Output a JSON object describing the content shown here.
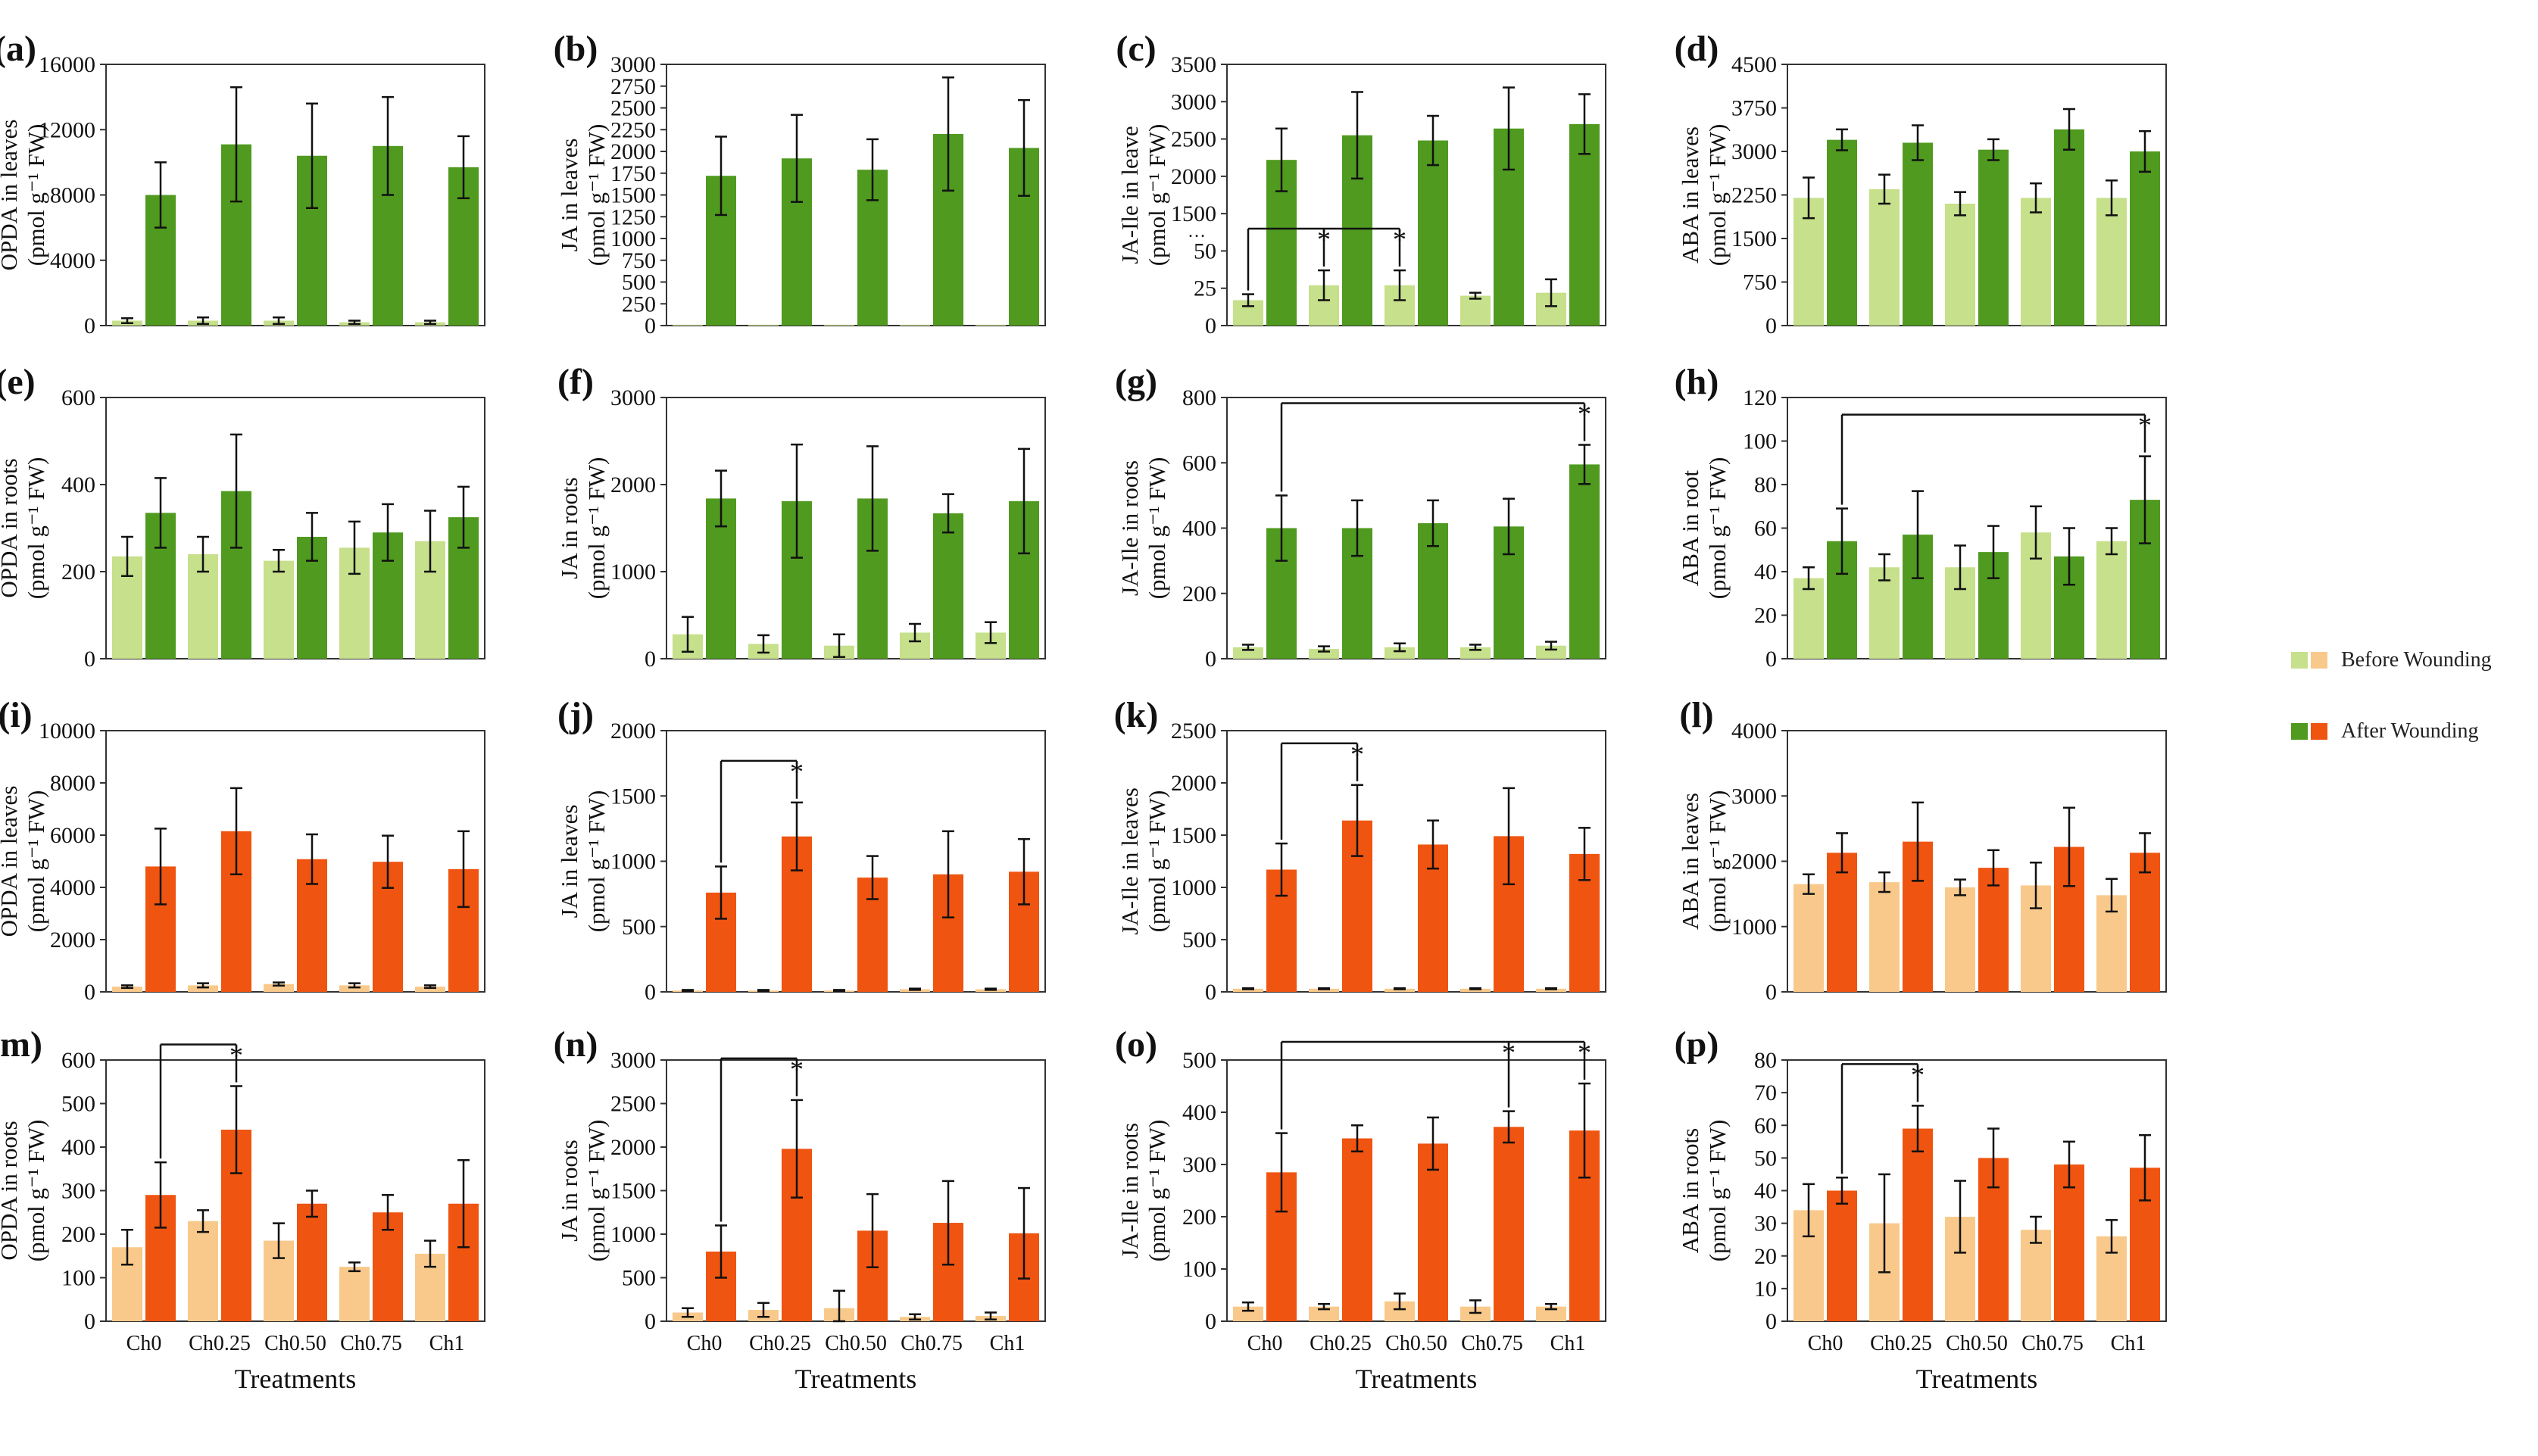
{
  "figure": {
    "title": ""
  },
  "legend": {
    "before_label": "Before Wounding",
    "after_label": "After Wounding",
    "colors": {
      "green_before": "#c6e08b",
      "green_after": "#4f9a1f",
      "orange_before": "#f9c98b",
      "orange_after": "#ef5410"
    }
  },
  "chart_data": [
    {
      "id": "a",
      "label": "(a)",
      "type": "bar",
      "ylabel": "OPDA in leaves",
      "yunit": "(pmol g⁻¹ FW)",
      "ylim": [
        0,
        16000
      ],
      "yticks": [
        "0",
        "4000",
        "8000",
        "12000",
        "16000"
      ],
      "color": "green",
      "categories": [
        "Ch0",
        "Ch0.25",
        "Ch0.50",
        "Ch0.75",
        "Ch1"
      ],
      "xlabel": "",
      "series": [
        {
          "name": "Before Wounding",
          "values": [
            300,
            300,
            300,
            200,
            200
          ],
          "errors": [
            150,
            200,
            200,
            100,
            100
          ]
        },
        {
          "name": "After Wounding",
          "values": [
            8000,
            11100,
            10400,
            11000,
            9700
          ],
          "errors": [
            2000,
            3500,
            3200,
            3000,
            1900
          ]
        }
      ]
    },
    {
      "id": "b",
      "label": "(b)",
      "type": "bar",
      "ylabel": "JA in leaves",
      "yunit": "(pmol g⁻¹ FW)",
      "ylim": [
        0,
        3000
      ],
      "yticks": [
        "0",
        "250",
        "500",
        "750",
        "1000",
        "1250",
        "1500",
        "1750",
        "2000",
        "2250",
        "2500",
        "2750",
        "3000"
      ],
      "color": "green",
      "categories": [
        "Ch0",
        "Ch0.25",
        "Ch0.50",
        "Ch0.75",
        "Ch1"
      ],
      "xlabel": "",
      "series": [
        {
          "name": "Before Wounding",
          "values": [
            10,
            10,
            10,
            10,
            10
          ],
          "errors": [
            0,
            0,
            0,
            0,
            0
          ]
        },
        {
          "name": "After Wounding",
          "values": [
            1720,
            1920,
            1790,
            2200,
            2040
          ],
          "errors": [
            450,
            500,
            350,
            650,
            550
          ]
        }
      ]
    },
    {
      "id": "c",
      "label": "(c)",
      "type": "bar",
      "ylabel": "JA-Ile in leave",
      "yunit": "(pmol g⁻¹ FW)",
      "ylim": [
        0,
        3500
      ],
      "yticks": [
        "0",
        "25",
        "50",
        "1500",
        "2000",
        "2500",
        "3000",
        "3500"
      ],
      "broken_axis": true,
      "color": "green",
      "categories": [
        "Ch0",
        "Ch0.25",
        "Ch0.50",
        "Ch0.75",
        "Ch1"
      ],
      "xlabel": "",
      "series": [
        {
          "name": "Before Wounding",
          "values": [
            17,
            27,
            27,
            20,
            22
          ],
          "errors": [
            4,
            10,
            10,
            2,
            9
          ]
        },
        {
          "name": "After Wounding",
          "values": [
            2220,
            2550,
            2480,
            2640,
            2700
          ],
          "errors": [
            420,
            580,
            330,
            550,
            400
          ]
        }
      ],
      "annotations": [
        {
          "text": "*",
          "bar": 1
        },
        {
          "text": "*",
          "bar": 2
        }
      ]
    },
    {
      "id": "d",
      "label": "(d)",
      "type": "bar",
      "ylabel": "ABA in leaves",
      "yunit": "(pmol g⁻¹ FW)",
      "ylim": [
        0,
        4500
      ],
      "yticks": [
        "0",
        "750",
        "1500",
        "2250",
        "3000",
        "3750",
        "4500"
      ],
      "color": "green",
      "categories": [
        "Ch0",
        "Ch0.25",
        "Ch0.50",
        "Ch0.75",
        "Ch1"
      ],
      "xlabel": "",
      "series": [
        {
          "name": "Before Wounding",
          "values": [
            2200,
            2350,
            2100,
            2200,
            2200
          ],
          "errors": [
            350,
            250,
            200,
            250,
            300
          ]
        },
        {
          "name": "After Wounding",
          "values": [
            3200,
            3150,
            3030,
            3380,
            3000
          ],
          "errors": [
            180,
            300,
            180,
            350,
            350
          ]
        }
      ]
    },
    {
      "id": "e",
      "label": "(e)",
      "type": "bar",
      "ylabel": "OPDA in roots",
      "yunit": "(pmol g⁻¹ FW)",
      "ylim": [
        0,
        600
      ],
      "yticks": [
        "0",
        "200",
        "400",
        "600"
      ],
      "color": "green",
      "categories": [
        "Ch0",
        "Ch0.25",
        "Ch0.50",
        "Ch0.75",
        "Ch1"
      ],
      "xlabel": "",
      "series": [
        {
          "name": "Before Wounding",
          "values": [
            235,
            240,
            225,
            255,
            270
          ],
          "errors": [
            45,
            40,
            25,
            60,
            70
          ]
        },
        {
          "name": "After Wounding",
          "values": [
            335,
            385,
            280,
            290,
            325
          ],
          "errors": [
            80,
            130,
            55,
            65,
            70
          ]
        }
      ]
    },
    {
      "id": "f",
      "label": "(f)",
      "type": "bar",
      "ylabel": "JA in roots",
      "yunit": "(pmol g⁻¹ FW)",
      "ylim": [
        0,
        3000
      ],
      "yticks": [
        "0",
        "1000",
        "2000",
        "3000"
      ],
      "color": "green",
      "categories": [
        "Ch0",
        "Ch0.25",
        "Ch0.50",
        "Ch0.75",
        "Ch1"
      ],
      "xlabel": "",
      "series": [
        {
          "name": "Before Wounding",
          "values": [
            280,
            170,
            150,
            300,
            300
          ],
          "errors": [
            200,
            100,
            130,
            100,
            120
          ]
        },
        {
          "name": "After Wounding",
          "values": [
            1840,
            1810,
            1840,
            1670,
            1810
          ],
          "errors": [
            320,
            650,
            600,
            220,
            600
          ]
        }
      ]
    },
    {
      "id": "g",
      "label": "(g)",
      "type": "bar",
      "ylabel": "JA-Ile in roots",
      "yunit": "(pmol g⁻¹ FW)",
      "ylim": [
        0,
        800
      ],
      "yticks": [
        "0",
        "200",
        "400",
        "600",
        "800"
      ],
      "color": "green",
      "categories": [
        "Ch0",
        "Ch0.25",
        "Ch0.50",
        "Ch0.75",
        "Ch1"
      ],
      "xlabel": "",
      "series": [
        {
          "name": "Before Wounding",
          "values": [
            35,
            30,
            35,
            35,
            40
          ],
          "errors": [
            8,
            8,
            12,
            8,
            12
          ]
        },
        {
          "name": "After Wounding",
          "values": [
            400,
            400,
            415,
            405,
            595
          ],
          "errors": [
            100,
            85,
            70,
            85,
            60
          ]
        }
      ],
      "annotations": [
        {
          "text": "*",
          "bar": 4
        }
      ]
    },
    {
      "id": "h",
      "label": "(h)",
      "type": "bar",
      "ylabel": "ABA in root",
      "yunit": "(pmol g⁻¹ FW)",
      "ylim": [
        0,
        120
      ],
      "yticks": [
        "0",
        "20",
        "40",
        "60",
        "80",
        "100",
        "120"
      ],
      "color": "green",
      "categories": [
        "Ch0",
        "Ch0.25",
        "Ch0.50",
        "Ch0.75",
        "Ch1"
      ],
      "xlabel": "",
      "series": [
        {
          "name": "Before Wounding",
          "values": [
            37,
            42,
            42,
            58,
            54
          ],
          "errors": [
            5,
            6,
            10,
            12,
            6
          ]
        },
        {
          "name": "After Wounding",
          "values": [
            54,
            57,
            49,
            47,
            73
          ],
          "errors": [
            15,
            20,
            12,
            13,
            20
          ]
        }
      ],
      "annotations": [
        {
          "text": "*",
          "bar": 4
        }
      ]
    },
    {
      "id": "i",
      "label": "(i)",
      "type": "bar",
      "ylabel": "OPDA in leaves",
      "yunit": "(pmol g⁻¹ FW)",
      "ylim": [
        0,
        10000
      ],
      "yticks": [
        "0",
        "2000",
        "4000",
        "6000",
        "8000",
        "10000"
      ],
      "color": "orange",
      "categories": [
        "Ch0",
        "Ch0.25",
        "Ch0.50",
        "Ch0.75",
        "Ch1"
      ],
      "xlabel": "",
      "series": [
        {
          "name": "Before Wounding",
          "values": [
            200,
            250,
            300,
            250,
            200
          ],
          "errors": [
            50,
            80,
            60,
            80,
            50
          ]
        },
        {
          "name": "After Wounding",
          "values": [
            4800,
            6150,
            5080,
            4980,
            4700
          ],
          "errors": [
            1450,
            1650,
            950,
            1000,
            1450
          ]
        }
      ]
    },
    {
      "id": "j",
      "label": "(j)",
      "type": "bar",
      "ylabel": "JA in leaves",
      "yunit": "(pmol g⁻¹ FW)",
      "ylim": [
        0,
        2000
      ],
      "yticks": [
        "0",
        "500",
        "1000",
        "1500",
        "2000"
      ],
      "color": "orange",
      "categories": [
        "Ch0",
        "Ch0.25",
        "Ch0.50",
        "Ch0.75",
        "Ch1"
      ],
      "xlabel": "",
      "series": [
        {
          "name": "Before Wounding",
          "values": [
            10,
            10,
            10,
            20,
            20
          ],
          "errors": [
            5,
            5,
            5,
            5,
            5
          ]
        },
        {
          "name": "After Wounding",
          "values": [
            760,
            1190,
            875,
            900,
            920
          ],
          "errors": [
            200,
            260,
            165,
            330,
            250
          ]
        }
      ],
      "annotations": [
        {
          "text": "*",
          "bar": 1
        }
      ]
    },
    {
      "id": "k",
      "label": "(k)",
      "type": "bar",
      "ylabel": "JA-Ile in leaves",
      "yunit": "(pmol g⁻¹ FW)",
      "ylim": [
        0,
        2500
      ],
      "yticks": [
        "0",
        "500",
        "1000",
        "1500",
        "2000",
        "2500"
      ],
      "color": "orange",
      "categories": [
        "Ch0",
        "Ch0.25",
        "Ch0.50",
        "Ch0.75",
        "Ch1"
      ],
      "xlabel": "",
      "series": [
        {
          "name": "Before Wounding",
          "values": [
            30,
            30,
            30,
            30,
            30
          ],
          "errors": [
            5,
            5,
            5,
            5,
            5
          ]
        },
        {
          "name": "After Wounding",
          "values": [
            1170,
            1640,
            1410,
            1490,
            1320
          ],
          "errors": [
            250,
            340,
            230,
            460,
            250
          ]
        }
      ],
      "annotations": [
        {
          "text": "*",
          "bar": 1
        }
      ]
    },
    {
      "id": "l",
      "label": "(l)",
      "type": "bar",
      "ylabel": "ABA in leaves",
      "yunit": "(pmol g⁻¹ FW)",
      "ylim": [
        0,
        4000
      ],
      "yticks": [
        "0",
        "1000",
        "2000",
        "3000",
        "4000"
      ],
      "color": "orange",
      "categories": [
        "Ch0",
        "Ch0.25",
        "Ch0.50",
        "Ch0.75",
        "Ch1"
      ],
      "xlabel": "",
      "series": [
        {
          "name": "Before Wounding",
          "values": [
            1650,
            1680,
            1600,
            1630,
            1480
          ],
          "errors": [
            150,
            150,
            120,
            350,
            250
          ]
        },
        {
          "name": "After Wounding",
          "values": [
            2130,
            2300,
            1900,
            2220,
            2130
          ],
          "errors": [
            300,
            600,
            270,
            600,
            300
          ]
        }
      ]
    },
    {
      "id": "m",
      "label": "(m)",
      "type": "bar",
      "ylabel": "OPDA in roots",
      "yunit": "(pmol g⁻¹ FW)",
      "ylim": [
        0,
        600
      ],
      "yticks": [
        "0",
        "100",
        "200",
        "300",
        "400",
        "500",
        "600"
      ],
      "color": "orange",
      "categories": [
        "Ch0",
        "Ch0.25",
        "Ch0.50",
        "Ch0.75",
        "Ch1"
      ],
      "xlabel": "Treatments",
      "series": [
        {
          "name": "Before Wounding",
          "values": [
            170,
            230,
            185,
            125,
            155
          ],
          "errors": [
            40,
            25,
            40,
            10,
            30
          ]
        },
        {
          "name": "After Wounding",
          "values": [
            290,
            440,
            270,
            250,
            270
          ],
          "errors": [
            75,
            100,
            30,
            40,
            100
          ]
        }
      ],
      "annotations": [
        {
          "text": "*",
          "bar": 1
        }
      ]
    },
    {
      "id": "n",
      "label": "(n)",
      "type": "bar",
      "ylabel": "JA in roots",
      "yunit": "(pmol g⁻¹ FW)",
      "ylim": [
        0,
        3000
      ],
      "yticks": [
        "0",
        "500",
        "1000",
        "1500",
        "2000",
        "2500",
        "3000"
      ],
      "color": "orange",
      "categories": [
        "Ch0",
        "Ch0.25",
        "Ch0.50",
        "Ch0.75",
        "Ch1"
      ],
      "xlabel": "Treatments",
      "series": [
        {
          "name": "Before Wounding",
          "values": [
            100,
            130,
            150,
            50,
            60
          ],
          "errors": [
            50,
            80,
            200,
            30,
            40
          ]
        },
        {
          "name": "After Wounding",
          "values": [
            800,
            1980,
            1040,
            1130,
            1010
          ],
          "errors": [
            300,
            560,
            420,
            480,
            520
          ]
        }
      ],
      "annotations": [
        {
          "text": "*",
          "bar": 1
        }
      ]
    },
    {
      "id": "o",
      "label": "(o)",
      "type": "bar",
      "ylabel": "JA-Ile in roots",
      "yunit": "(pmol g⁻¹ FW)",
      "ylim": [
        0,
        500
      ],
      "yticks": [
        "0",
        "100",
        "200",
        "300",
        "400",
        "500"
      ],
      "color": "orange",
      "categories": [
        "Ch0",
        "Ch0.25",
        "Ch0.50",
        "Ch0.75",
        "Ch1"
      ],
      "xlabel": "Treatments",
      "series": [
        {
          "name": "Before Wounding",
          "values": [
            28,
            28,
            38,
            28,
            28
          ],
          "errors": [
            8,
            5,
            15,
            12,
            5
          ]
        },
        {
          "name": "After Wounding",
          "values": [
            285,
            350,
            340,
            372,
            365
          ],
          "errors": [
            75,
            25,
            50,
            30,
            90
          ]
        }
      ],
      "annotations": [
        {
          "text": "*",
          "bar": 3
        },
        {
          "text": "*",
          "bar": 4
        }
      ]
    },
    {
      "id": "p",
      "label": "(p)",
      "type": "bar",
      "ylabel": "ABA in roots",
      "yunit": "(pmol g⁻¹ FW)",
      "ylim": [
        0,
        80
      ],
      "yticks": [
        "0",
        "10",
        "20",
        "30",
        "40",
        "50",
        "60",
        "70",
        "80"
      ],
      "color": "orange",
      "categories": [
        "Ch0",
        "Ch0.25",
        "Ch0.50",
        "Ch0.75",
        "Ch1"
      ],
      "xlabel": "Treatments",
      "series": [
        {
          "name": "Before Wounding",
          "values": [
            34,
            30,
            32,
            28,
            26
          ],
          "errors": [
            8,
            15,
            11,
            4,
            5
          ]
        },
        {
          "name": "After Wounding",
          "values": [
            40,
            59,
            50,
            48,
            47
          ],
          "errors": [
            4,
            7,
            9,
            7,
            10
          ]
        }
      ],
      "annotations": [
        {
          "text": "*",
          "bar": 1
        }
      ]
    }
  ]
}
